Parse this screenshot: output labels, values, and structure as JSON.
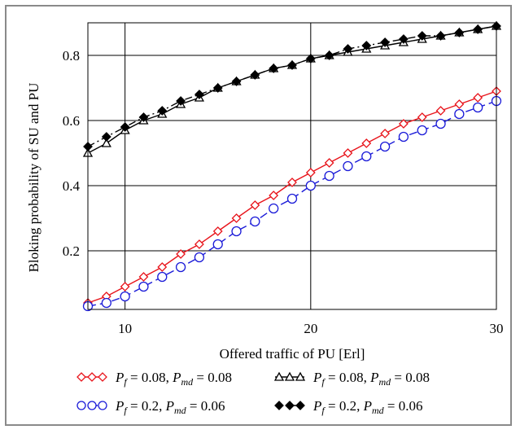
{
  "chart_data": {
    "type": "line",
    "xlabel": "Offered traffic of PU [Erl]",
    "ylabel": "Bloking probability of SU and PU",
    "xlim": [
      8,
      30
    ],
    "ylim": [
      0.02,
      0.9
    ],
    "xticks": [
      10,
      20,
      30
    ],
    "yticks": [
      0.2,
      0.4,
      0.6,
      0.8
    ],
    "xtick_labels": [
      "10",
      "20",
      "30"
    ],
    "ytick_labels": [
      "0.2",
      "0.4",
      "0.6",
      "0.8"
    ],
    "grid": true,
    "legend_placement": "bottom",
    "series": [
      {
        "key": "red",
        "legend": {
          "p": "P",
          "ps": "f",
          "a": " = 0.08, ",
          "m": "P",
          "ms": "md",
          "b": " = 0.08"
        },
        "color": "#e8141b",
        "marker": "diamond-open",
        "line": "solid",
        "x": [
          8,
          9,
          10,
          11,
          12,
          13,
          14,
          15,
          16,
          17,
          18,
          19,
          20,
          21,
          22,
          23,
          24,
          25,
          26,
          27,
          28,
          29,
          30
        ],
        "y": [
          0.04,
          0.06,
          0.09,
          0.12,
          0.15,
          0.19,
          0.22,
          0.26,
          0.3,
          0.34,
          0.37,
          0.41,
          0.44,
          0.47,
          0.5,
          0.53,
          0.56,
          0.59,
          0.61,
          0.63,
          0.65,
          0.67,
          0.69
        ]
      },
      {
        "key": "blue",
        "legend": {
          "p": "P",
          "ps": "f",
          "a": " = 0.2, ",
          "m": "P",
          "ms": "md",
          "b": " = 0.06"
        },
        "color": "#1a1ad8",
        "marker": "circle-open",
        "line": "dashed",
        "x": [
          8,
          9,
          10,
          11,
          12,
          13,
          14,
          15,
          16,
          17,
          18,
          19,
          20,
          21,
          22,
          23,
          24,
          25,
          26,
          27,
          28,
          29,
          30
        ],
        "y": [
          0.03,
          0.04,
          0.06,
          0.09,
          0.12,
          0.15,
          0.18,
          0.22,
          0.26,
          0.29,
          0.33,
          0.36,
          0.4,
          0.43,
          0.46,
          0.49,
          0.52,
          0.55,
          0.57,
          0.59,
          0.62,
          0.64,
          0.66
        ]
      },
      {
        "key": "tri",
        "legend": {
          "p": "P",
          "ps": "f",
          "a": " = 0.08, ",
          "m": "P",
          "ms": "md",
          "b": " = 0.08"
        },
        "color": "#000000",
        "marker": "triangle-open",
        "line": "solid",
        "x": [
          8,
          9,
          10,
          11,
          12,
          13,
          14,
          15,
          16,
          17,
          18,
          19,
          20,
          21,
          22,
          23,
          24,
          25,
          26,
          27,
          28,
          29,
          30
        ],
        "y": [
          0.5,
          0.53,
          0.57,
          0.6,
          0.62,
          0.65,
          0.67,
          0.7,
          0.72,
          0.74,
          0.76,
          0.77,
          0.79,
          0.8,
          0.81,
          0.82,
          0.83,
          0.84,
          0.85,
          0.86,
          0.87,
          0.88,
          0.89
        ]
      },
      {
        "key": "dia",
        "legend": {
          "p": "P",
          "ps": "f",
          "a": " = 0.2, ",
          "m": "P",
          "ms": "md",
          "b": " = 0.06"
        },
        "color": "#000000",
        "marker": "diamond-filled",
        "line": "dashdot",
        "x": [
          8,
          9,
          10,
          11,
          12,
          13,
          14,
          15,
          16,
          17,
          18,
          19,
          20,
          21,
          22,
          23,
          24,
          25,
          26,
          27,
          28,
          29,
          30
        ],
        "y": [
          0.52,
          0.55,
          0.58,
          0.61,
          0.63,
          0.66,
          0.68,
          0.7,
          0.72,
          0.74,
          0.76,
          0.77,
          0.79,
          0.8,
          0.82,
          0.83,
          0.84,
          0.85,
          0.86,
          0.86,
          0.87,
          0.88,
          0.89
        ]
      }
    ]
  }
}
